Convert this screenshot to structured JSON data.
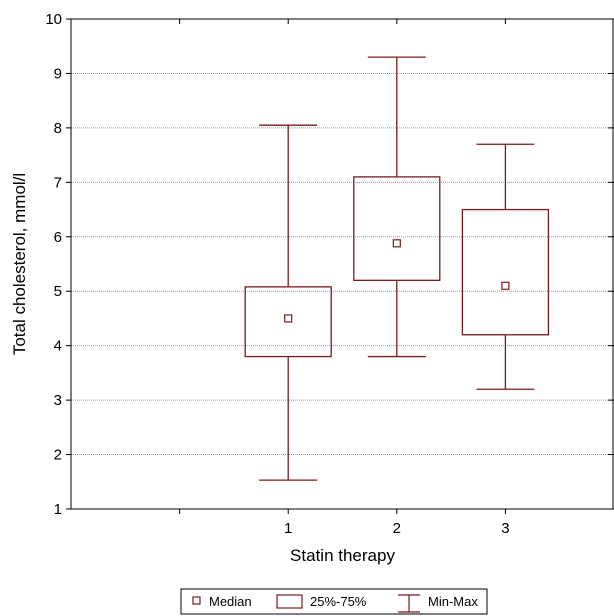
{
  "chart_data": {
    "type": "box",
    "xlabel": "Statin therapy",
    "ylabel": "Total cholesterol, mmol/l",
    "ylim": [
      1,
      10
    ],
    "yticks": [
      1,
      2,
      3,
      4,
      5,
      6,
      7,
      8,
      9,
      10
    ],
    "xlim": [
      0,
      5
    ],
    "categories": [
      "1",
      "2",
      "3"
    ],
    "boxes": [
      {
        "category": "1",
        "min": 1.53,
        "q1": 3.8,
        "median": 4.5,
        "q3": 5.08,
        "max": 8.05
      },
      {
        "category": "2",
        "min": 3.8,
        "q1": 5.2,
        "median": 5.88,
        "q3": 7.1,
        "max": 9.3
      },
      {
        "category": "3",
        "min": 3.2,
        "q1": 4.2,
        "median": 5.1,
        "q3": 6.5,
        "max": 7.7
      }
    ],
    "grid": "horizontal dotted",
    "legend": {
      "position": "bottom-center",
      "items": [
        {
          "label": "Median",
          "symbol": "square-marker"
        },
        {
          "label": "25%-75%",
          "symbol": "box"
        },
        {
          "label": "Min-Max",
          "symbol": "whisker"
        }
      ]
    },
    "colors": {
      "series": "#7b1a1a",
      "grid": "#9a9a9a",
      "axis": "#000000"
    }
  }
}
